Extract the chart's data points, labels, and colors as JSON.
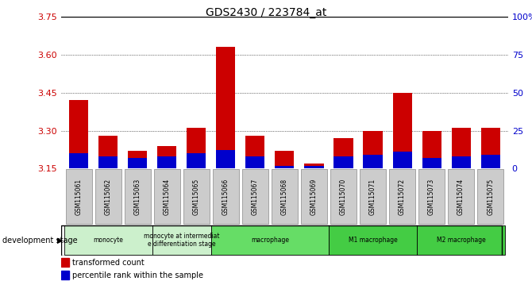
{
  "title": "GDS2430 / 223784_at",
  "samples": [
    "GSM115061",
    "GSM115062",
    "GSM115063",
    "GSM115064",
    "GSM115065",
    "GSM115066",
    "GSM115067",
    "GSM115068",
    "GSM115069",
    "GSM115070",
    "GSM115071",
    "GSM115072",
    "GSM115073",
    "GSM115074",
    "GSM115075"
  ],
  "transformed_count": [
    3.42,
    3.28,
    3.22,
    3.24,
    3.31,
    3.63,
    3.28,
    3.22,
    3.17,
    3.27,
    3.3,
    3.45,
    3.3,
    3.31,
    3.31
  ],
  "percentile_rank": [
    10,
    8,
    7,
    8,
    10,
    12,
    8,
    2,
    2,
    8,
    9,
    11,
    7,
    8,
    9
  ],
  "ylim_left": [
    3.15,
    3.75
  ],
  "ylim_right": [
    0,
    100
  ],
  "yticks_left": [
    3.15,
    3.3,
    3.45,
    3.6,
    3.75
  ],
  "yticks_right": [
    0,
    25,
    50,
    75,
    100
  ],
  "yticks_right_labels": [
    "0",
    "25",
    "50",
    "75",
    "100%"
  ],
  "bar_color_red": "#cc0000",
  "bar_color_blue": "#0000cc",
  "tick_color_left": "#cc0000",
  "tick_color_right": "#0000cc",
  "bg_color": "#ffffff",
  "sample_bg": "#cccccc",
  "stage_defs": [
    {
      "label": "monocyte",
      "start": 0,
      "end": 3,
      "color": "#ccf0cc"
    },
    {
      "label": "monocyte at intermediat\ne differentiation stage",
      "start": 3,
      "end": 5,
      "color": "#ccf0cc"
    },
    {
      "label": "macrophage",
      "start": 5,
      "end": 9,
      "color": "#66dd66"
    },
    {
      "label": "M1 macrophage",
      "start": 9,
      "end": 12,
      "color": "#44cc44"
    },
    {
      "label": "M2 macrophage",
      "start": 12,
      "end": 15,
      "color": "#44cc44"
    }
  ]
}
